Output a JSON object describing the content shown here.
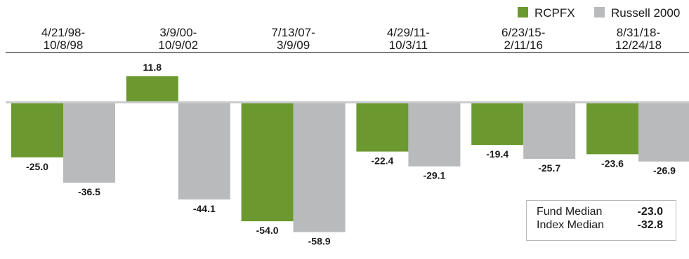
{
  "colors": {
    "fund": "#6b992f",
    "index": "#b8babc",
    "axis": "#555555",
    "text": "#1a1a1a"
  },
  "legend": [
    {
      "key": "fund",
      "label": "RCPFX"
    },
    {
      "key": "index",
      "label": "Russell 2000"
    }
  ],
  "medians": {
    "fund_label": "Fund Median",
    "fund_value": "-23.0",
    "index_label": "Index Median",
    "index_value": "-32.8"
  },
  "chart_data": {
    "type": "bar",
    "title": "",
    "xlabel": "",
    "ylabel": "",
    "ylim": [
      -65,
      15
    ],
    "legend_position": "top-right",
    "grid": false,
    "categories": [
      [
        "4/21/98-",
        "10/8/98"
      ],
      [
        "3/9/00-",
        "10/9/02"
      ],
      [
        "7/13/07-",
        "3/9/09"
      ],
      [
        "4/29/11-",
        "10/3/11"
      ],
      [
        "6/23/15-",
        "2/11/16"
      ],
      [
        "8/31/18-",
        "12/24/18"
      ]
    ],
    "series": [
      {
        "name": "RCPFX",
        "key": "fund",
        "values": [
          -25.0,
          11.8,
          -54.0,
          -22.4,
          -19.4,
          -23.6
        ],
        "labels": [
          "-25.0",
          "11.8",
          "-54.0",
          "-22.4",
          "-19.4",
          "-23.6"
        ]
      },
      {
        "name": "Russell 2000",
        "key": "index",
        "values": [
          -36.5,
          -44.1,
          -58.9,
          -29.1,
          -25.7,
          -26.9
        ],
        "labels": [
          "-36.5",
          "-44.1",
          "-58.9",
          "-29.1",
          "-25.7",
          "-26.9"
        ]
      }
    ]
  }
}
